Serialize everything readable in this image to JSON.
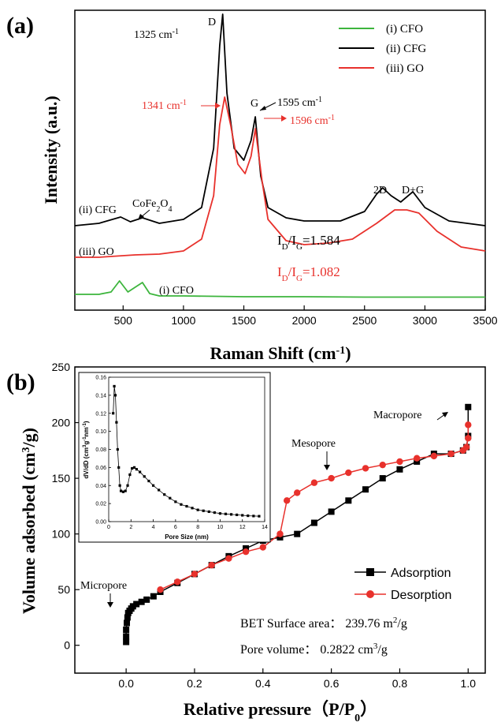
{
  "chart_data": [
    {
      "type": "line",
      "panel_label": "(a)",
      "xlabel": "Raman Shift (cm",
      "xlabel_sup": "-1",
      "xlabel_end": ")",
      "ylabel": "Intensity (a.u.)",
      "xlim": [
        100,
        3500
      ],
      "xticks": [
        "500",
        "1000",
        "1500",
        "2000",
        "2500",
        "3000",
        "3500"
      ],
      "legend": {
        "placement": "top-right"
      },
      "series": [
        {
          "name": "(i) CFO",
          "color": "#3db53d",
          "label": "(i) CFO",
          "x": [
            100,
            300,
            400,
            470,
            540,
            610,
            660,
            720,
            800,
            1000,
            1500,
            2000,
            2500,
            3000,
            3500
          ],
          "y": [
            0.05,
            0.05,
            0.08,
            0.22,
            0.08,
            0.15,
            0.2,
            0.06,
            0.03,
            0.03,
            0.02,
            0.02,
            0.015,
            0.015,
            0.015
          ]
        },
        {
          "name": "(ii) CFG",
          "color": "#000000",
          "label": "(ii) CFG",
          "x": [
            100,
            300,
            480,
            560,
            660,
            800,
            1000,
            1150,
            1250,
            1300,
            1325,
            1360,
            1420,
            1500,
            1560,
            1595,
            1640,
            1700,
            1850,
            2000,
            2300,
            2500,
            2600,
            2650,
            2720,
            2800,
            2900,
            3000,
            3200,
            3500
          ],
          "y": [
            0.92,
            0.95,
            1.03,
            0.97,
            1.02,
            0.95,
            1.0,
            1.15,
            1.9,
            3.2,
            3.6,
            2.6,
            1.9,
            1.75,
            2.0,
            2.3,
            1.55,
            1.15,
            1.02,
            0.98,
            0.98,
            1.1,
            1.32,
            1.4,
            1.3,
            1.22,
            1.35,
            1.15,
            0.98,
            0.92
          ]
        },
        {
          "name": "(iii) GO",
          "color": "#e8312c",
          "label": "(iii) GO",
          "x": [
            100,
            300,
            600,
            800,
            1000,
            1150,
            1250,
            1300,
            1341,
            1390,
            1450,
            1510,
            1560,
            1596,
            1650,
            1700,
            1850,
            2000,
            2200,
            2400,
            2600,
            2750,
            2850,
            2950,
            3100,
            3300,
            3500
          ],
          "y": [
            0.52,
            0.52,
            0.55,
            0.56,
            0.6,
            0.75,
            1.3,
            2.2,
            2.55,
            2.2,
            1.7,
            1.58,
            1.8,
            2.15,
            1.5,
            1.0,
            0.73,
            0.68,
            0.7,
            0.75,
            0.95,
            1.12,
            1.12,
            1.08,
            0.85,
            0.65,
            0.6
          ]
        }
      ],
      "annotations": {
        "d_label": "D",
        "g_label": "G",
        "peak_1325": "1325 cm",
        "peak_1595": "1595 cm",
        "peak_1341": "1341 cm",
        "peak_1596": "1596 cm",
        "inv_cm_sup": "-1",
        "cofe2o4": "CoFe",
        "cofe2o4_sub": "2",
        "cofe2o4_end": "O",
        "cofe2o4_sub2": "4",
        "label_2d": "2D",
        "label_dg": "D+G",
        "cfg_side": "(ii) CFG",
        "go_side": "(iii) GO",
        "cfo_side": "(i) CFO",
        "ratio_cfg_prefix": "I",
        "ratio_sub_d": "D",
        "ratio_slash": "/I",
        "ratio_sub_g": "G",
        "ratio_cfg_value": "=1.584",
        "ratio_go_value": "=1.082"
      }
    },
    {
      "type": "line",
      "panel_label": "(b)",
      "xlabel": "Relative pressure（P/P",
      "xlabel_sub": "0",
      "xlabel_end": "）",
      "ylabel": "Volume adsorbed (cm",
      "ylabel_sup": "3",
      "ylabel_end": "/g)",
      "xlim": [
        -0.15,
        1.05
      ],
      "ylim": [
        -25,
        250
      ],
      "xticks": [
        "0.0",
        "0.2",
        "0.4",
        "0.6",
        "0.8",
        "1.0"
      ],
      "yticks": [
        "0",
        "50",
        "100",
        "150",
        "200",
        "250"
      ],
      "legend": {
        "placement": "bottom-right"
      },
      "series": [
        {
          "name": "Adsorption",
          "color": "#000000",
          "marker": "square",
          "x": [
            0.0,
            0.0,
            0.0,
            0.002,
            0.004,
            0.006,
            0.01,
            0.015,
            0.02,
            0.03,
            0.045,
            0.06,
            0.08,
            0.1,
            0.15,
            0.2,
            0.25,
            0.3,
            0.35,
            0.4,
            0.45,
            0.5,
            0.55,
            0.6,
            0.65,
            0.7,
            0.75,
            0.8,
            0.85,
            0.9,
            0.95,
            0.985,
            0.995,
            1.0,
            1.0
          ],
          "y": [
            3,
            8,
            14,
            20,
            25,
            29,
            31,
            33,
            35,
            37,
            39,
            41,
            44,
            48,
            56,
            64,
            72,
            80,
            87,
            94,
            97,
            100,
            110,
            120,
            130,
            140,
            150,
            158,
            165,
            172,
            172,
            175,
            178,
            188,
            214
          ]
        },
        {
          "name": "Desorption",
          "color": "#e8312c",
          "marker": "circle",
          "x": [
            1.0,
            1.0,
            0.995,
            0.985,
            0.95,
            0.9,
            0.85,
            0.8,
            0.75,
            0.7,
            0.65,
            0.6,
            0.55,
            0.5,
            0.47,
            0.45,
            0.4,
            0.35,
            0.3,
            0.25,
            0.2,
            0.15,
            0.1
          ],
          "y": [
            198,
            186,
            178,
            175,
            172,
            170,
            168,
            165,
            162,
            159,
            155,
            150,
            146,
            137,
            130,
            100,
            88,
            84,
            78,
            72,
            64,
            57,
            50
          ]
        }
      ],
      "annotations": {
        "micropore": "Micropore",
        "mesopore": "Mesopore",
        "macropore": "Macropore",
        "bet_area_label": "BET Surface area： 239.76 m",
        "bet_area_sup": "2",
        "bet_area_end": "/g",
        "pore_volume_label": "Pore volume： 0.2822 cm",
        "pore_volume_sup": "3",
        "pore_volume_end": "/g"
      },
      "inset": {
        "type": "line",
        "xlabel": "Pore Size (nm)",
        "ylabel": "dV/dD (cm",
        "ylabel_sup": "3",
        "ylabel_mid": "g",
        "ylabel_sup2": "-1",
        "ylabel_mid2": "nm",
        "ylabel_sup3": "-1",
        "ylabel_end": ")",
        "xlim": [
          0,
          14
        ],
        "ylim": [
          0,
          0.16
        ],
        "xticks": [
          "0",
          "2",
          "4",
          "6",
          "8",
          "10",
          "12",
          "14"
        ],
        "yticks": [
          "0.00",
          "0.02",
          "0.04",
          "0.06",
          "0.08",
          "0.10",
          "0.12",
          "0.14",
          "0.16"
        ],
        "x": [
          0.4,
          0.5,
          0.6,
          0.7,
          0.8,
          0.9,
          1.0,
          1.1,
          1.3,
          1.5,
          1.7,
          1.9,
          2.1,
          2.3,
          2.5,
          2.8,
          3.2,
          3.6,
          4.0,
          4.5,
          5.0,
          5.5,
          6.0,
          6.5,
          7.0,
          7.5,
          8.0,
          8.5,
          9.0,
          9.5,
          10.0,
          10.5,
          11.0,
          11.5,
          12.0,
          12.5,
          13.0,
          13.5
        ],
        "y": [
          0.12,
          0.15,
          0.14,
          0.11,
          0.08,
          0.06,
          0.04,
          0.034,
          0.033,
          0.034,
          0.04,
          0.052,
          0.059,
          0.06,
          0.058,
          0.055,
          0.05,
          0.045,
          0.04,
          0.035,
          0.03,
          0.026,
          0.022,
          0.019,
          0.017,
          0.015,
          0.013,
          0.012,
          0.011,
          0.01,
          0.009,
          0.0085,
          0.008,
          0.0075,
          0.007,
          0.0065,
          0.0062,
          0.006
        ]
      }
    }
  ]
}
